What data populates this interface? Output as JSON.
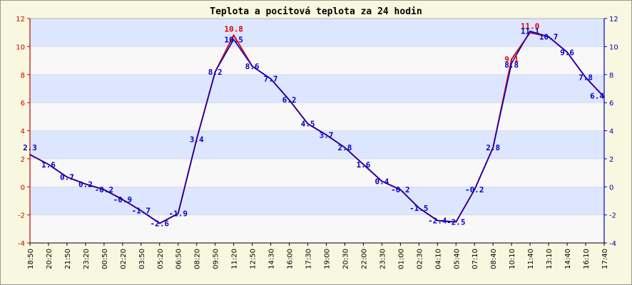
{
  "chart_data": {
    "type": "line",
    "title": "Teplota a pocitová teplota za 24 hodin",
    "ylim": [
      -4,
      12
    ],
    "y_ticks": [
      -4,
      -2,
      0,
      2,
      4,
      6,
      8,
      10,
      12
    ],
    "y_tick_labels": [
      "-4",
      "-2",
      "0",
      "2",
      "4",
      "6",
      "8",
      "10",
      "12"
    ],
    "x_tick_labels": [
      "18:50",
      "20:20",
      "21:50",
      "23:20",
      "00:50",
      "02:20",
      "03:50",
      "05:20",
      "06:50",
      "08:20",
      "09:50",
      "11:20",
      "12:50",
      "14:30",
      "16:00",
      "17:30",
      "19:00",
      "20:30",
      "22:00",
      "23:30",
      "01:00",
      "02:30",
      "04:10",
      "05:40",
      "07:10",
      "08:40",
      "10:10",
      "11:40",
      "13:10",
      "14:40",
      "16:10",
      "17:40"
    ],
    "grid": true,
    "colors": {
      "temperature": "#0000cc",
      "feels_like": "#dd0000",
      "band_a": "#dde6ff",
      "band_b": "#f8f8f8",
      "left_axis": "#cc0000",
      "right_axis": "#0000cc"
    },
    "series": [
      {
        "key": "feels_like",
        "values": [
          2.3,
          1.6,
          0.7,
          0.2,
          -0.2,
          -0.9,
          -1.7,
          -2.6,
          -1.9,
          3.4,
          8.2,
          10.8,
          8.6,
          7.7,
          6.2,
          4.5,
          3.7,
          2.8,
          1.6,
          0.4,
          -0.2,
          -1.5,
          -2.4,
          -2.5,
          -0.2,
          2.8,
          9.1,
          11.0,
          10.7,
          9.6,
          7.8,
          6.4
        ]
      },
      {
        "key": "temperature",
        "values": [
          2.3,
          1.6,
          0.7,
          0.2,
          -0.2,
          -0.9,
          -1.7,
          -2.6,
          -1.9,
          3.4,
          8.2,
          10.5,
          8.6,
          7.7,
          6.2,
          4.5,
          3.7,
          2.8,
          1.6,
          0.4,
          -0.2,
          -1.5,
          -2.4,
          -2.5,
          -0.2,
          2.8,
          8.8,
          11.1,
          10.7,
          9.6,
          7.8,
          6.4
        ]
      }
    ],
    "point_labels": [
      {
        "i": 0,
        "text": "2.3",
        "series": "temperature"
      },
      {
        "i": 1,
        "text": "1.6",
        "series": "temperature"
      },
      {
        "i": 2,
        "text": "0.7",
        "series": "temperature"
      },
      {
        "i": 3,
        "text": "0.2",
        "series": "temperature"
      },
      {
        "i": 4,
        "text": "-0.2",
        "series": "temperature"
      },
      {
        "i": 5,
        "text": "-0.9",
        "series": "temperature"
      },
      {
        "i": 6,
        "text": "-1.7",
        "series": "temperature"
      },
      {
        "i": 7,
        "text": "-2.6",
        "series": "temperature"
      },
      {
        "i": 8,
        "text": "-1.9",
        "series": "temperature"
      },
      {
        "i": 9,
        "text": "3.4",
        "series": "temperature"
      },
      {
        "i": 10,
        "text": "8.2",
        "series": "temperature"
      },
      {
        "i": 11,
        "text": "10.8",
        "series": "feels_like"
      },
      {
        "i": 11,
        "text": "10.5",
        "series": "temperature"
      },
      {
        "i": 12,
        "text": "8.6",
        "series": "temperature"
      },
      {
        "i": 13,
        "text": "7.7",
        "series": "temperature"
      },
      {
        "i": 14,
        "text": "6.2",
        "series": "temperature"
      },
      {
        "i": 15,
        "text": "4.5",
        "series": "temperature"
      },
      {
        "i": 16,
        "text": "3.7",
        "series": "temperature"
      },
      {
        "i": 17,
        "text": "2.8",
        "series": "temperature"
      },
      {
        "i": 18,
        "text": "1.6",
        "series": "temperature"
      },
      {
        "i": 19,
        "text": "0.4",
        "series": "temperature"
      },
      {
        "i": 20,
        "text": "-0.2",
        "series": "temperature"
      },
      {
        "i": 21,
        "text": "-1.5",
        "series": "temperature"
      },
      {
        "i": 22,
        "text": "-2.4",
        "series": "temperature"
      },
      {
        "i": 23,
        "text": "-2.5",
        "series": "temperature"
      },
      {
        "i": 24,
        "text": "-0.2",
        "series": "temperature"
      },
      {
        "i": 25,
        "text": "2.8",
        "series": "temperature"
      },
      {
        "i": 26,
        "text": "9.1",
        "series": "feels_like"
      },
      {
        "i": 26,
        "text": "8.8",
        "series": "temperature"
      },
      {
        "i": 27,
        "text": "11.0",
        "series": "feels_like"
      },
      {
        "i": 27,
        "text": "11.1",
        "series": "temperature"
      },
      {
        "i": 28,
        "text": "10.7",
        "series": "temperature"
      },
      {
        "i": 29,
        "text": "9.6",
        "series": "temperature"
      },
      {
        "i": 30,
        "text": "7.8",
        "series": "temperature"
      },
      {
        "i": 31,
        "text": "6.4",
        "series": "temperature"
      }
    ]
  }
}
